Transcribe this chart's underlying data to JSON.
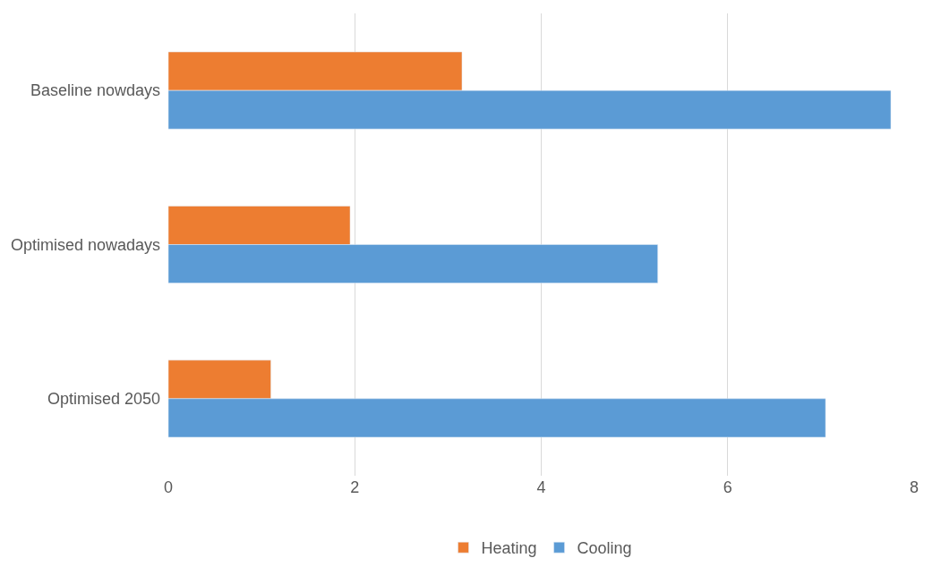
{
  "chart_data": {
    "type": "bar",
    "orientation": "horizontal",
    "categories": [
      "Baseline nowdays",
      "Optimised nowadays",
      "Optimised 2050"
    ],
    "series": [
      {
        "name": "Heating",
        "color": "#ed7d31",
        "values": [
          3.15,
          1.95,
          1.1
        ]
      },
      {
        "name": "Cooling",
        "color": "#5b9bd5",
        "values": [
          7.75,
          5.25,
          7.05
        ]
      }
    ],
    "xlim": [
      0,
      8
    ],
    "xticks": [
      0,
      2,
      4,
      6,
      8
    ],
    "grid": "x",
    "legend": "bottom"
  }
}
